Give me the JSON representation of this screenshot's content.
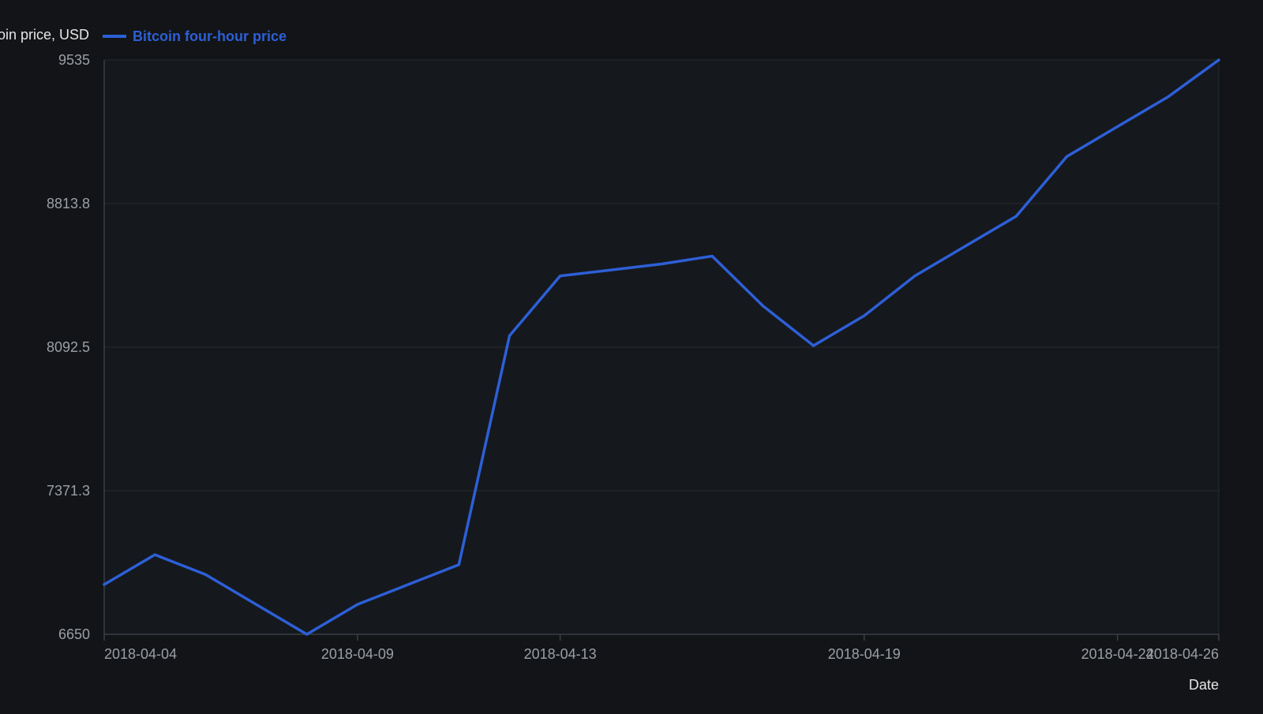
{
  "colors": {
    "background": "#121417",
    "plot_background": "#15181d",
    "grid": "#262a30",
    "axis": "#3a3f46",
    "tick_text": "#9aa0a6",
    "label_text": "#e6e6e6",
    "series": "#2d5fd6"
  },
  "chart_data": {
    "type": "line",
    "title": "",
    "ylabel": "Bitcoin price, USD",
    "xlabel": "Date",
    "legend_position": "top-left",
    "grid": true,
    "y_ticks": [
      "6650",
      "7371.3",
      "8092.5",
      "8813.8",
      "9535"
    ],
    "ylim": [
      6650,
      9535
    ],
    "x_ticks": [
      {
        "label": "2018-04-04",
        "value": "2018-04-04"
      },
      {
        "label": "2018-04-09",
        "value": "2018-04-09"
      },
      {
        "label": "2018-04-13",
        "value": "2018-04-13"
      },
      {
        "label": "2018-04-19",
        "value": "2018-04-19"
      },
      {
        "label": "2018-04-24",
        "value": "2018-04-24"
      },
      {
        "label": "2018-04-26",
        "value": "2018-04-26"
      }
    ],
    "xlim": [
      "2018-04-04",
      "2018-04-26"
    ],
    "series": [
      {
        "name": "Bitcoin four-hour price",
        "color": "#2d5fd6",
        "points": [
          {
            "x": "2018-04-04",
            "y": 6900
          },
          {
            "x": "2018-04-05",
            "y": 7050
          },
          {
            "x": "2018-04-06",
            "y": 6950
          },
          {
            "x": "2018-04-07",
            "y": 6800
          },
          {
            "x": "2018-04-08",
            "y": 6650
          },
          {
            "x": "2018-04-09",
            "y": 6800
          },
          {
            "x": "2018-04-10",
            "y": 6900
          },
          {
            "x": "2018-04-11",
            "y": 7000
          },
          {
            "x": "2018-04-12",
            "y": 8150
          },
          {
            "x": "2018-04-13",
            "y": 8450
          },
          {
            "x": "2018-04-14",
            "y": 8480
          },
          {
            "x": "2018-04-15",
            "y": 8510
          },
          {
            "x": "2018-04-16",
            "y": 8550
          },
          {
            "x": "2018-04-17",
            "y": 8300
          },
          {
            "x": "2018-04-18",
            "y": 8100
          },
          {
            "x": "2018-04-19",
            "y": 8250
          },
          {
            "x": "2018-04-20",
            "y": 8450
          },
          {
            "x": "2018-04-21",
            "y": 8600
          },
          {
            "x": "2018-04-22",
            "y": 8750
          },
          {
            "x": "2018-04-23",
            "y": 9050
          },
          {
            "x": "2018-04-24",
            "y": 9200
          },
          {
            "x": "2018-04-25",
            "y": 9350
          },
          {
            "x": "2018-04-26",
            "y": 9535
          }
        ]
      }
    ]
  }
}
